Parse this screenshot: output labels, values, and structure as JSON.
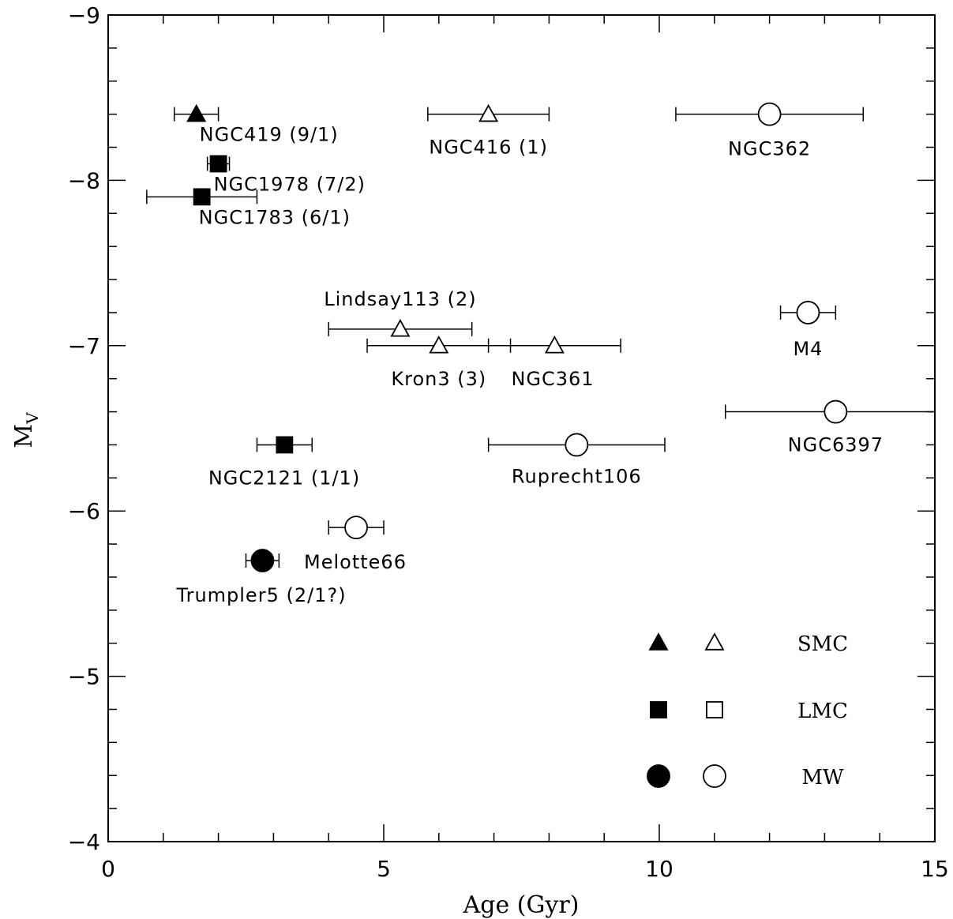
{
  "chart_data": {
    "type": "scatter",
    "xlabel": "Age (Gyr)",
    "ylabel_main": "M",
    "ylabel_sub": "V",
    "xlim": [
      0,
      15
    ],
    "ylim": [
      -4,
      -9
    ],
    "y_inverted": true,
    "x_major_ticks": [
      0,
      5,
      10,
      15
    ],
    "x_tick_labels": [
      "0",
      "5",
      "10",
      "15"
    ],
    "x_minor_step": 1,
    "y_major_ticks": [
      -9,
      -8,
      -7,
      -6,
      -5,
      -4
    ],
    "y_tick_labels": [
      "−9",
      "−8",
      "−7",
      "−6",
      "−5",
      "−4"
    ],
    "y_minor_step": 0.2,
    "grid": false,
    "points": [
      {
        "label": "NGC419 (9/1)",
        "x": 1.6,
        "y": -8.4,
        "xerr_lo": 0.4,
        "xerr_hi": 0.4,
        "marker": "triangle",
        "filled": true,
        "size": "small",
        "group": "SMC"
      },
      {
        "label": "NGC1978 (7/2)",
        "x": 2.0,
        "y": -8.1,
        "xerr_lo": 0.2,
        "xerr_hi": 0.2,
        "marker": "square",
        "filled": true,
        "size": "small",
        "group": "LMC"
      },
      {
        "label": "NGC1783 (6/1)",
        "x": 1.7,
        "y": -7.9,
        "xerr_lo": 1.0,
        "xerr_hi": 1.0,
        "marker": "square",
        "filled": true,
        "size": "small",
        "group": "LMC"
      },
      {
        "label": "NGC416 (1)",
        "x": 6.9,
        "y": -8.4,
        "xerr_lo": 1.1,
        "xerr_hi": 1.1,
        "marker": "triangle",
        "filled": false,
        "size": "small",
        "group": "SMC"
      },
      {
        "label": "NGC362",
        "x": 12.0,
        "y": -8.4,
        "xerr_lo": 1.7,
        "xerr_hi": 1.7,
        "marker": "circle",
        "filled": false,
        "size": "large",
        "group": "MW"
      },
      {
        "label": "Lindsay113 (2)",
        "x": 5.3,
        "y": -7.1,
        "xerr_lo": 1.3,
        "xerr_hi": 1.3,
        "marker": "triangle",
        "filled": false,
        "size": "small",
        "group": "SMC"
      },
      {
        "label": "Kron3 (3)",
        "x": 6.0,
        "y": -7.0,
        "xerr_lo": 1.3,
        "xerr_hi": 1.3,
        "marker": "triangle",
        "filled": false,
        "size": "small",
        "group": "SMC"
      },
      {
        "label": "NGC361",
        "x": 8.1,
        "y": -7.0,
        "xerr_lo": 1.2,
        "xerr_hi": 1.2,
        "marker": "triangle",
        "filled": false,
        "size": "small",
        "group": "SMC"
      },
      {
        "label": "M4",
        "x": 12.7,
        "y": -7.2,
        "xerr_lo": 0.5,
        "xerr_hi": 0.5,
        "marker": "circle",
        "filled": false,
        "size": "large",
        "group": "MW"
      },
      {
        "label": "NGC6397",
        "x": 13.2,
        "y": -6.6,
        "xerr_lo": 2.0,
        "xerr_hi": 2.0,
        "marker": "circle",
        "filled": false,
        "size": "large",
        "group": "MW"
      },
      {
        "label": "NGC2121 (1/1)",
        "x": 3.2,
        "y": -6.4,
        "xerr_lo": 0.5,
        "xerr_hi": 0.5,
        "marker": "square",
        "filled": true,
        "size": "small",
        "group": "LMC"
      },
      {
        "label": "Ruprecht106",
        "x": 8.5,
        "y": -6.4,
        "xerr_lo": 1.6,
        "xerr_hi": 1.6,
        "marker": "circle",
        "filled": false,
        "size": "large",
        "group": "MW"
      },
      {
        "label": "Melotte66",
        "x": 4.5,
        "y": -5.9,
        "xerr_lo": 0.5,
        "xerr_hi": 0.5,
        "marker": "circle",
        "filled": false,
        "size": "large",
        "group": "MW"
      },
      {
        "label": "Trumpler5 (2/1?)",
        "x": 2.8,
        "y": -5.7,
        "xerr_lo": 0.3,
        "xerr_hi": 0.3,
        "marker": "circle",
        "filled": true,
        "size": "large",
        "group": "MW"
      }
    ],
    "legend": {
      "placement": "bottom-right",
      "entries": [
        {
          "marker": "triangle",
          "text": "SMC"
        },
        {
          "marker": "square",
          "text": "LMC"
        },
        {
          "marker": "circle",
          "text": "MW"
        }
      ]
    }
  }
}
